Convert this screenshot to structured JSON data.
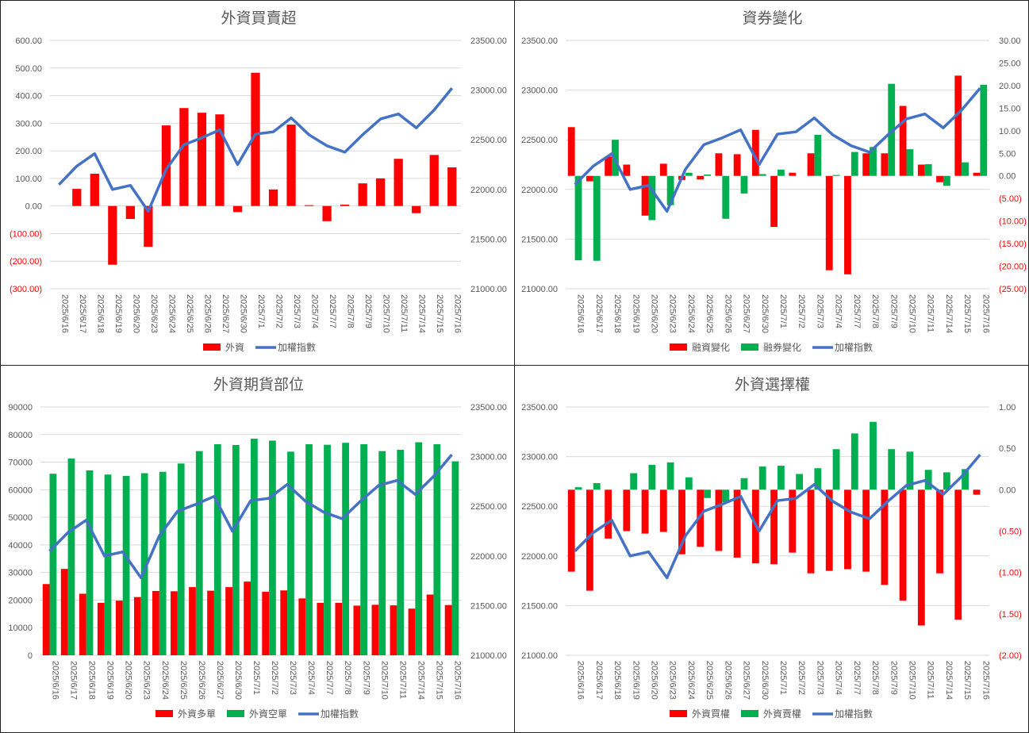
{
  "colors": {
    "red": "#ff0000",
    "green": "#00b050",
    "blue": "#4472c4",
    "grid": "#d9d9d9",
    "text": "#595959"
  },
  "chart_data": [
    {
      "type": "bar+line",
      "title": "外資買賣超",
      "categories": [
        "2025/6/16",
        "2025/6/17",
        "2025/6/18",
        "2025/6/19",
        "2025/6/20",
        "2025/6/23",
        "2025/6/24",
        "2025/6/25",
        "2025/6/26",
        "2025/6/27",
        "2025/6/30",
        "2025/7/1",
        "2025/7/2",
        "2025/7/3",
        "2025/7/4",
        "2025/7/7",
        "2025/7/8",
        "2025/7/9",
        "2025/7/10",
        "2025/7/11",
        "2025/7/14",
        "2025/7/15",
        "2025/7/16"
      ],
      "left_axis": {
        "min": -300,
        "max": 600,
        "step": 100,
        "ticks": [
          "(300.00)",
          "(200.00)",
          "(100.00)",
          "0.00",
          "100.00",
          "200.00",
          "300.00",
          "400.00",
          "500.00",
          "600.00"
        ]
      },
      "right_axis": {
        "min": 21000,
        "max": 23500,
        "step": 500,
        "ticks": [
          "21000.00",
          "21500.00",
          "22000.00",
          "22500.00",
          "23000.00",
          "23500.00"
        ]
      },
      "bar_mode": "signed",
      "series": [
        {
          "name": "外資",
          "kind": "bar",
          "axis": "left",
          "values": [
            0,
            62,
            117,
            -213,
            -47,
            -148,
            292,
            355,
            338,
            332,
            -22,
            483,
            60,
            295,
            3,
            -55,
            5,
            82,
            100,
            171,
            -26,
            185,
            140
          ]
        },
        {
          "name": "加權指數",
          "kind": "line",
          "axis": "right",
          "values": [
            22048,
            22235,
            22360,
            22000,
            22041,
            21780,
            22202,
            22450,
            22520,
            22600,
            22250,
            22557,
            22580,
            22720,
            22550,
            22440,
            22375,
            22551,
            22710,
            22760,
            22620,
            22800,
            23020
          ]
        }
      ],
      "legend": "bottom"
    },
    {
      "type": "bar+line",
      "title": "資券變化",
      "categories": [
        "2025/6/16",
        "2025/6/17",
        "2025/6/18",
        "2025/6/19",
        "2025/6/20",
        "2025/6/23",
        "2025/6/24",
        "2025/6/25",
        "2025/6/26",
        "2025/6/27",
        "2025/6/30",
        "2025/7/1",
        "2025/7/2",
        "2025/7/3",
        "2025/7/4",
        "2025/7/7",
        "2025/7/8",
        "2025/7/9",
        "2025/7/10",
        "2025/7/11",
        "2025/7/14",
        "2025/7/15",
        "2025/7/16"
      ],
      "left_axis": {
        "min": 21000,
        "max": 23500,
        "step": 500,
        "ticks": [
          "21000.00",
          "21500.00",
          "22000.00",
          "22500.00",
          "23000.00",
          "23500.00"
        ]
      },
      "right_axis": {
        "min": -25,
        "max": 30,
        "step": 5,
        "ticks": [
          "(25.00)",
          "(20.00)",
          "(15.00)",
          "(10.00)",
          "(5.00)",
          "0.00",
          "5.00",
          "10.00",
          "15.00",
          "20.00",
          "25.00",
          "30.00"
        ]
      },
      "bar_mode": "signed",
      "series": [
        {
          "name": "融資變化",
          "kind": "bar",
          "axis": "right",
          "values": [
            10.8,
            -1.2,
            4.3,
            2.5,
            -8.8,
            2.7,
            -0.9,
            -0.8,
            5.0,
            4.8,
            10.2,
            -11.3,
            0.7,
            5.0,
            -20.9,
            -21.8,
            5.0,
            5.0,
            15.5,
            2.5,
            -1.4,
            22.2,
            0.7
          ]
        },
        {
          "name": "融券變化",
          "kind": "bar",
          "axis": "right",
          "values": [
            -18.7,
            -18.8,
            8.0,
            0,
            -9.8,
            -6.5,
            0.7,
            0.3,
            -9.5,
            -3.9,
            0.4,
            1.4,
            0,
            9.1,
            0.2,
            5.3,
            6.4,
            20.4,
            5.9,
            2.6,
            -2.2,
            3.0,
            20.2
          ]
        },
        {
          "name": "加權指數",
          "kind": "line",
          "axis": "left",
          "values": [
            22048,
            22235,
            22360,
            22000,
            22041,
            21780,
            22202,
            22450,
            22520,
            22600,
            22250,
            22557,
            22580,
            22720,
            22550,
            22440,
            22375,
            22551,
            22710,
            22760,
            22620,
            22800,
            23020
          ]
        }
      ],
      "legend": "bottom"
    },
    {
      "type": "bar+line",
      "title": "外資期貨部位",
      "categories": [
        "2025/6/16",
        "2025/6/17",
        "2025/6/18",
        "2025/6/19",
        "2025/6/20",
        "2025/6/23",
        "2025/6/24",
        "2025/6/25",
        "2025/6/26",
        "2025/6/27",
        "2025/6/30",
        "2025/7/1",
        "2025/7/2",
        "2025/7/3",
        "2025/7/4",
        "2025/7/7",
        "2025/7/8",
        "2025/7/9",
        "2025/7/10",
        "2025/7/11",
        "2025/7/14",
        "2025/7/15",
        "2025/7/16"
      ],
      "left_axis": {
        "min": 0,
        "max": 90000,
        "step": 10000,
        "ticks": [
          "0",
          "10000",
          "20000",
          "30000",
          "40000",
          "50000",
          "60000",
          "70000",
          "80000",
          "90000"
        ]
      },
      "right_axis": {
        "min": 21000,
        "max": 23500,
        "step": 500,
        "ticks": [
          "21000.00",
          "21500.00",
          "22000.00",
          "22500.00",
          "23000.00",
          "23500.00"
        ]
      },
      "bar_mode": "clustered",
      "series": [
        {
          "name": "外資多單",
          "kind": "bar",
          "axis": "left",
          "values": [
            25800,
            31300,
            22300,
            19000,
            19800,
            21100,
            23300,
            23200,
            24700,
            23400,
            24700,
            26700,
            23000,
            23500,
            20600,
            19000,
            19000,
            18000,
            18300,
            18100,
            16900,
            22000,
            18200
          ]
        },
        {
          "name": "外資空單",
          "kind": "bar",
          "axis": "left",
          "values": [
            65800,
            71300,
            67000,
            65500,
            65000,
            66000,
            66500,
            69500,
            74000,
            76500,
            76200,
            78500,
            77800,
            73800,
            76500,
            76300,
            77000,
            76500,
            74000,
            74500,
            77200,
            76500,
            70300
          ]
        },
        {
          "name": "加權指數",
          "kind": "line",
          "axis": "right",
          "values": [
            22048,
            22235,
            22360,
            22000,
            22041,
            21780,
            22202,
            22450,
            22520,
            22600,
            22250,
            22557,
            22580,
            22720,
            22550,
            22440,
            22375,
            22551,
            22710,
            22760,
            22620,
            22800,
            23020
          ]
        }
      ],
      "legend": "bottom"
    },
    {
      "type": "bar+line",
      "title": "外資選擇權",
      "categories": [
        "2025/6/16",
        "2025/6/17",
        "2025/6/18",
        "2025/6/19",
        "2025/6/20",
        "2025/6/23",
        "2025/6/24",
        "2025/6/25",
        "2025/6/26",
        "2025/6/27",
        "2025/6/30",
        "2025/7/1",
        "2025/7/2",
        "2025/7/3",
        "2025/7/4",
        "2025/7/7",
        "2025/7/8",
        "2025/7/9",
        "2025/7/10",
        "2025/7/11",
        "2025/7/14",
        "2025/7/15",
        "2025/7/16"
      ],
      "left_axis": {
        "min": 21000,
        "max": 23500,
        "step": 500,
        "ticks": [
          "21000.00",
          "21500.00",
          "22000.00",
          "22500.00",
          "23000.00",
          "23500.00"
        ]
      },
      "right_axis": {
        "min": -2,
        "max": 1,
        "step": 0.5,
        "ticks": [
          "(2.00)",
          "(1.50)",
          "(1.00)",
          "(0.50)",
          "0.00",
          "0.50",
          "1.00"
        ]
      },
      "bar_mode": "signed",
      "series": [
        {
          "name": "外資買權",
          "kind": "bar",
          "axis": "right",
          "values": [
            -0.99,
            -1.22,
            -0.59,
            -0.5,
            -0.53,
            -0.51,
            -0.78,
            -0.69,
            -0.74,
            -0.82,
            -0.89,
            -0.9,
            -0.76,
            -1.01,
            -0.98,
            -0.96,
            -0.99,
            -1.15,
            -1.34,
            -1.64,
            -1.01,
            -1.57,
            -0.06
          ]
        },
        {
          "name": "外資賣權",
          "kind": "bar",
          "axis": "right",
          "values": [
            0.03,
            0.08,
            0,
            0.2,
            0.3,
            0.33,
            0.15,
            -0.1,
            -0.15,
            0.14,
            0.28,
            0.29,
            0.19,
            0.26,
            0.49,
            0.68,
            0.82,
            0.49,
            0.46,
            0.24,
            0.21,
            0.25,
            0
          ]
        },
        {
          "name": "加權指數",
          "kind": "line",
          "axis": "left",
          "values": [
            22048,
            22235,
            22360,
            22000,
            22041,
            21780,
            22202,
            22450,
            22520,
            22600,
            22250,
            22557,
            22580,
            22720,
            22550,
            22440,
            22375,
            22551,
            22710,
            22760,
            22620,
            22800,
            23020
          ]
        }
      ],
      "legend": "bottom"
    }
  ]
}
